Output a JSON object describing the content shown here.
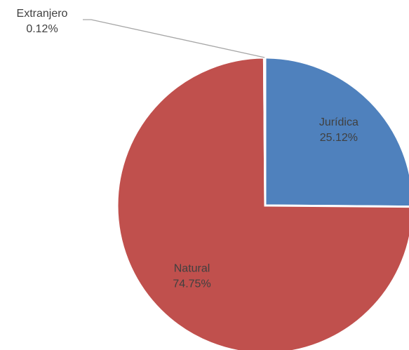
{
  "chart_data": {
    "type": "pie",
    "categories": [
      "Jurídica",
      "Natural",
      "Extranjero"
    ],
    "values": [
      25.12,
      74.75,
      0.12
    ],
    "value_labels": [
      "25.12%",
      "74.75%",
      "0.12%"
    ],
    "colors": [
      "#4f81bd",
      "#c0504d",
      "#9bbb59"
    ]
  }
}
